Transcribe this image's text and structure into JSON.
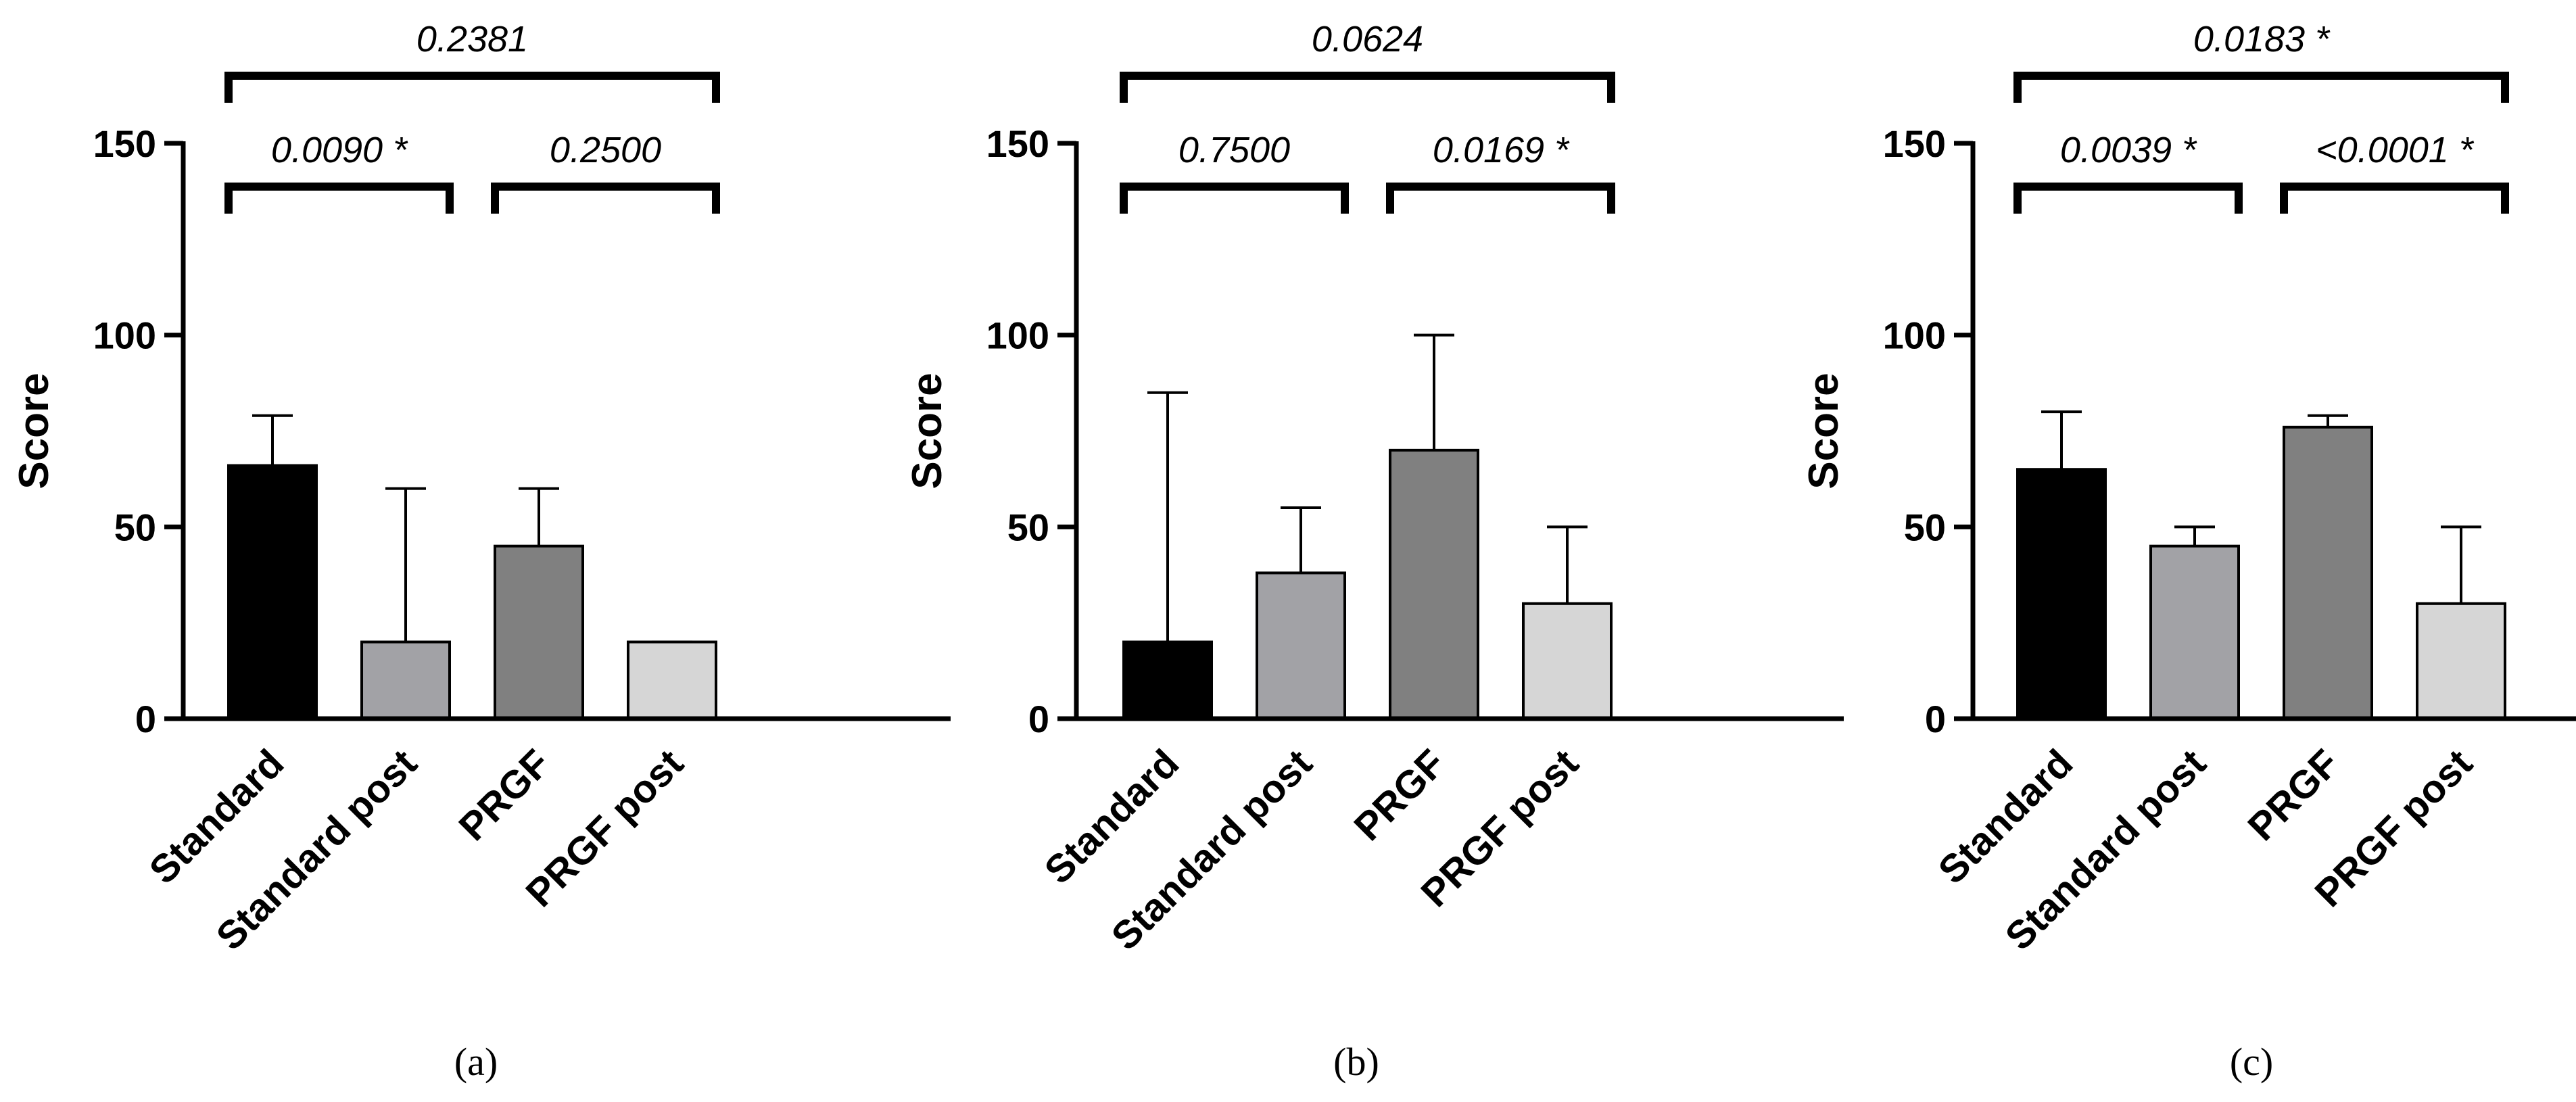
{
  "colors": {
    "Standard": "#000000",
    "Standard post": "#a2a2a6",
    "PRGF": "#808080",
    "PRGF post": "#d6d6d6",
    "axis": "#000000"
  },
  "chart_data": [
    {
      "type": "bar",
      "panel_label": "(a)",
      "categories": [
        "Standard",
        "Standard post",
        "PRGF",
        "PRGF post"
      ],
      "values": [
        66,
        20,
        45,
        20
      ],
      "error_upper": [
        79,
        60,
        60,
        20
      ],
      "ylabel": "Score",
      "xlabel": "",
      "ylim": [
        0,
        150
      ],
      "yticks": [
        "0",
        "50",
        "100",
        "150"
      ],
      "comparisons": [
        {
          "from": 0,
          "to": 3,
          "label": "0.2381",
          "level": "top"
        },
        {
          "from": 0,
          "to": 1,
          "label": "0.0090 *",
          "level": "low"
        },
        {
          "from": 2,
          "to": 3,
          "label": "0.2500",
          "level": "low"
        }
      ]
    },
    {
      "type": "bar",
      "panel_label": "(b)",
      "categories": [
        "Standard",
        "Standard post",
        "PRGF",
        "PRGF post"
      ],
      "values": [
        20,
        38,
        70,
        30
      ],
      "error_upper": [
        85,
        55,
        100,
        50
      ],
      "ylabel": "Score",
      "xlabel": "",
      "ylim": [
        0,
        150
      ],
      "yticks": [
        "0",
        "50",
        "100",
        "150"
      ],
      "comparisons": [
        {
          "from": 0,
          "to": 3,
          "label": "0.0624",
          "level": "top"
        },
        {
          "from": 0,
          "to": 1,
          "label": "0.7500",
          "level": "low"
        },
        {
          "from": 2,
          "to": 3,
          "label": "0.0169 *",
          "level": "low"
        }
      ]
    },
    {
      "type": "bar",
      "panel_label": "(c)",
      "categories": [
        "Standard",
        "Standard post",
        "PRGF",
        "PRGF post"
      ],
      "values": [
        65,
        45,
        76,
        30
      ],
      "error_upper": [
        80,
        50,
        79,
        50
      ],
      "ylabel": "Score",
      "xlabel": "",
      "ylim": [
        0,
        150
      ],
      "yticks": [
        "0",
        "50",
        "100",
        "150"
      ],
      "comparisons": [
        {
          "from": 0,
          "to": 3,
          "label": "0.0183 *",
          "level": "top"
        },
        {
          "from": 0,
          "to": 1,
          "label": "0.0039 *",
          "level": "low"
        },
        {
          "from": 2,
          "to": 3,
          "label": "<0.0001 *",
          "level": "low"
        }
      ]
    }
  ]
}
